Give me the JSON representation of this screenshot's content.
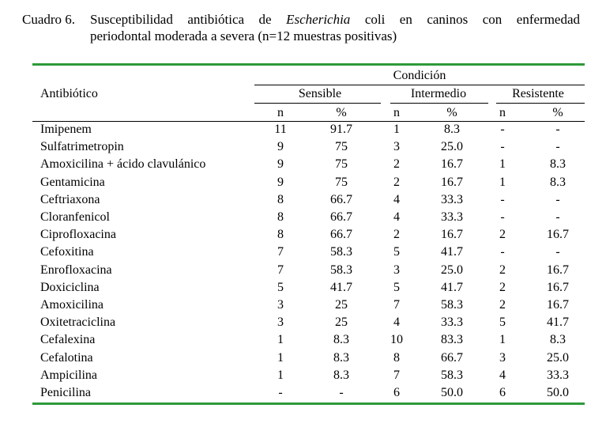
{
  "caption": {
    "label": "Cuadro 6.",
    "prefix": "Susceptibilidad antibiótica de",
    "italic_term": "Escherichia",
    "suffix_line1": "coli en caninos con enfermedad",
    "line2": "periodontal moderada a severa (n=12 muestras positivas)"
  },
  "table": {
    "col_antibiotic": "Antibiótico",
    "group_header": "Condición",
    "subgroups": [
      "Sensible",
      "Intermedio",
      "Resistente"
    ],
    "subcols": [
      "n",
      "%",
      "n",
      "%",
      "n",
      "%"
    ],
    "rows": [
      {
        "name": "Imipenem",
        "values": [
          "11",
          "91.7",
          "1",
          "8.3",
          "-",
          "-"
        ]
      },
      {
        "name": "Sulfatrimetropin",
        "values": [
          "9",
          "75",
          "3",
          "25.0",
          "-",
          "-"
        ]
      },
      {
        "name": "Amoxicilina + ácido clavulánico",
        "values": [
          "9",
          "75",
          "2",
          "16.7",
          "1",
          "8.3"
        ]
      },
      {
        "name": "Gentamicina",
        "values": [
          "9",
          "75",
          "2",
          "16.7",
          "1",
          "8.3"
        ]
      },
      {
        "name": "Ceftriaxona",
        "values": [
          "8",
          "66.7",
          "4",
          "33.3",
          "-",
          "-"
        ]
      },
      {
        "name": "Cloranfenicol",
        "values": [
          "8",
          "66.7",
          "4",
          "33.3",
          "-",
          "-"
        ]
      },
      {
        "name": "Ciprofloxacina",
        "values": [
          "8",
          "66.7",
          "2",
          "16.7",
          "2",
          "16.7"
        ]
      },
      {
        "name": "Cefoxitina",
        "values": [
          "7",
          "58.3",
          "5",
          "41.7",
          "-",
          "-"
        ]
      },
      {
        "name": "Enrofloxacina",
        "values": [
          "7",
          "58.3",
          "3",
          "25.0",
          "2",
          "16.7"
        ]
      },
      {
        "name": "Doxiciclina",
        "values": [
          "5",
          "41.7",
          "5",
          "41.7",
          "2",
          "16.7"
        ]
      },
      {
        "name": "Amoxicilina",
        "values": [
          "3",
          "25",
          "7",
          "58.3",
          "2",
          "16.7"
        ]
      },
      {
        "name": "Oxitetraciclina",
        "values": [
          "3",
          "25",
          "4",
          "33.3",
          "5",
          "41.7"
        ]
      },
      {
        "name": "Cefalexina",
        "values": [
          "1",
          "8.3",
          "10",
          "83.3",
          "1",
          "8.3"
        ]
      },
      {
        "name": "Cefalotina",
        "values": [
          "1",
          "8.3",
          "8",
          "66.7",
          "3",
          "25.0"
        ]
      },
      {
        "name": "Ampicilina",
        "values": [
          "1",
          "8.3",
          "7",
          "58.3",
          "4",
          "33.3"
        ]
      },
      {
        "name": "Penicilina",
        "values": [
          "-",
          "-",
          "6",
          "50.0",
          "6",
          "50.0"
        ]
      }
    ]
  },
  "colors": {
    "rule_green": "#2e9a3a",
    "text": "#000000"
  }
}
